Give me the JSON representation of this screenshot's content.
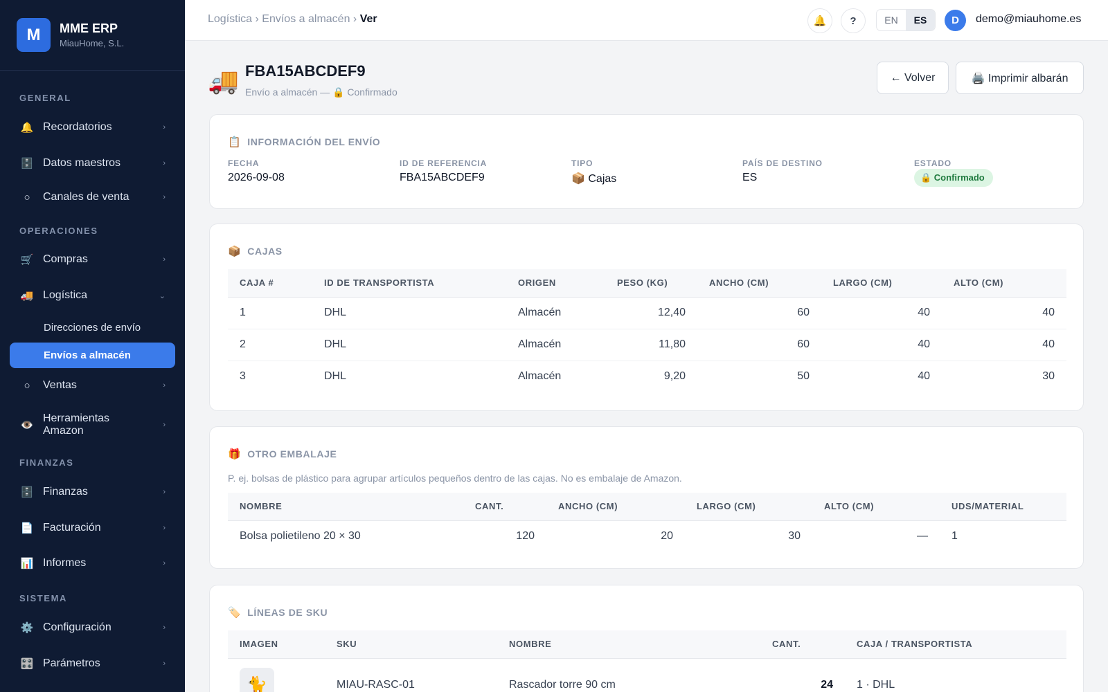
{
  "brand": {
    "logo_letter": "M",
    "name": "MME ERP",
    "company": "MiauHome, S.L."
  },
  "sidebar": {
    "sections": {
      "general": "GENERAL",
      "operaciones": "OPERACIONES",
      "finanzas": "FINANZAS",
      "sistema": "SISTEMA"
    },
    "items": {
      "recordatorios": {
        "icon": "🔔",
        "label": "Recordatorios",
        "chevron": "›"
      },
      "datos_maestros": {
        "icon": "🗄️",
        "label": "Datos maestros",
        "chevron": "›"
      },
      "canales_venta": {
        "icon": "○",
        "label": "Canales de venta",
        "chevron": "›"
      },
      "compras": {
        "icon": "🛒",
        "label": "Compras",
        "chevron": "›"
      },
      "logistica": {
        "icon": "🚚",
        "label": "Logística",
        "chevron": "⌄"
      },
      "direcciones_envio": {
        "label": "Direcciones de envío"
      },
      "envios_almacen": {
        "label": "Envíos a almacén"
      },
      "ventas": {
        "icon": "○",
        "label": "Ventas",
        "chevron": "›"
      },
      "herramientas_amazon": {
        "icon": "👁️",
        "label": "Herramientas Amazon",
        "chevron": "›"
      },
      "finanzas": {
        "icon": "🗄️",
        "label": "Finanzas",
        "chevron": "›"
      },
      "facturacion": {
        "icon": "📄",
        "label": "Facturación",
        "chevron": "›"
      },
      "informes": {
        "icon": "📊",
        "label": "Informes",
        "chevron": "›"
      },
      "configuracion": {
        "icon": "⚙️",
        "label": "Configuración",
        "chevron": "›"
      },
      "parametros": {
        "icon": "🎛️",
        "label": "Parámetros",
        "chevron": "›"
      }
    }
  },
  "topbar": {
    "breadcrumb": {
      "level1": "Logística",
      "sep": "›",
      "level2": "Envíos a almacén",
      "current": "Ver"
    },
    "bell_icon": "🔔",
    "help_icon": "?",
    "lang_en": "EN",
    "lang_es": "ES",
    "avatar_letter": "D",
    "user_email": "demo@miauhome.es"
  },
  "page": {
    "icon": "🚚",
    "title": "FBA15ABCDEF9",
    "subtitle": "Envío a almacén — 🔒 Confirmado",
    "back_button": "← Volver",
    "print_button": "🖨️ Imprimir albarán"
  },
  "shipment_info": {
    "title_icon": "📋",
    "title": "INFORMACIÓN DEL ENVÍO",
    "fecha_label": "FECHA",
    "fecha": "2026-09-08",
    "ref_label": "ID DE REFERENCIA",
    "ref": "FBA15ABCDEF9",
    "tipo_label": "TIPO",
    "tipo": "📦 Cajas",
    "pais_label": "PAÍS DE DESTINO",
    "pais": "ES",
    "estado_label": "ESTADO",
    "estado": "🔒 Confirmado",
    "estado_color": "#1f7a3f"
  },
  "boxes": {
    "title_icon": "📦",
    "title": "CAJAS",
    "headers": {
      "caja": "CAJA #",
      "transportista": "ID DE TRANSPORTISTA",
      "origen": "ORIGEN",
      "peso": "PESO (KG)",
      "ancho": "ANCHO (CM)",
      "largo": "LARGO (CM)",
      "alto": "ALTO (CM)"
    },
    "rows": [
      {
        "caja": "1",
        "transportista": "DHL",
        "origen": "Almacén",
        "peso": "12,40",
        "ancho": "60",
        "largo": "40",
        "alto": "40"
      },
      {
        "caja": "2",
        "transportista": "DHL",
        "origen": "Almacén",
        "peso": "11,80",
        "ancho": "60",
        "largo": "40",
        "alto": "40"
      },
      {
        "caja": "3",
        "transportista": "DHL",
        "origen": "Almacén",
        "peso": "9,20",
        "ancho": "50",
        "largo": "40",
        "alto": "30"
      }
    ]
  },
  "packaging": {
    "title_icon": "🎁",
    "title": "OTRO EMBALAJE",
    "note": "P. ej. bolsas de plástico para agrupar artículos pequeños dentro de las cajas. No es embalaje de Amazon.",
    "headers": {
      "nombre": "NOMBRE",
      "cant": "CANT.",
      "ancho": "ANCHO (CM)",
      "largo": "LARGO (CM)",
      "alto": "ALTO (CM)",
      "uds": "UDS/MATERIAL"
    },
    "rows": [
      {
        "nombre": "Bolsa polietileno 20 × 30",
        "cant": "120",
        "ancho": "20",
        "largo": "30",
        "alto": "—",
        "uds": "1"
      }
    ]
  },
  "sku_lines": {
    "title_icon": "🏷️",
    "title": "LÍNEAS DE SKU",
    "headers": {
      "imagen": "IMAGEN",
      "sku": "SKU",
      "nombre": "NOMBRE",
      "cant": "CANT.",
      "caja": "CAJA / TRANSPORTISTA"
    },
    "rows": [
      {
        "thumb_icon": "🐈",
        "sku": "MIAU-RASC-01",
        "nombre": "Rascador torre 90 cm",
        "cant": "24",
        "caja": "1 · DHL"
      }
    ]
  }
}
